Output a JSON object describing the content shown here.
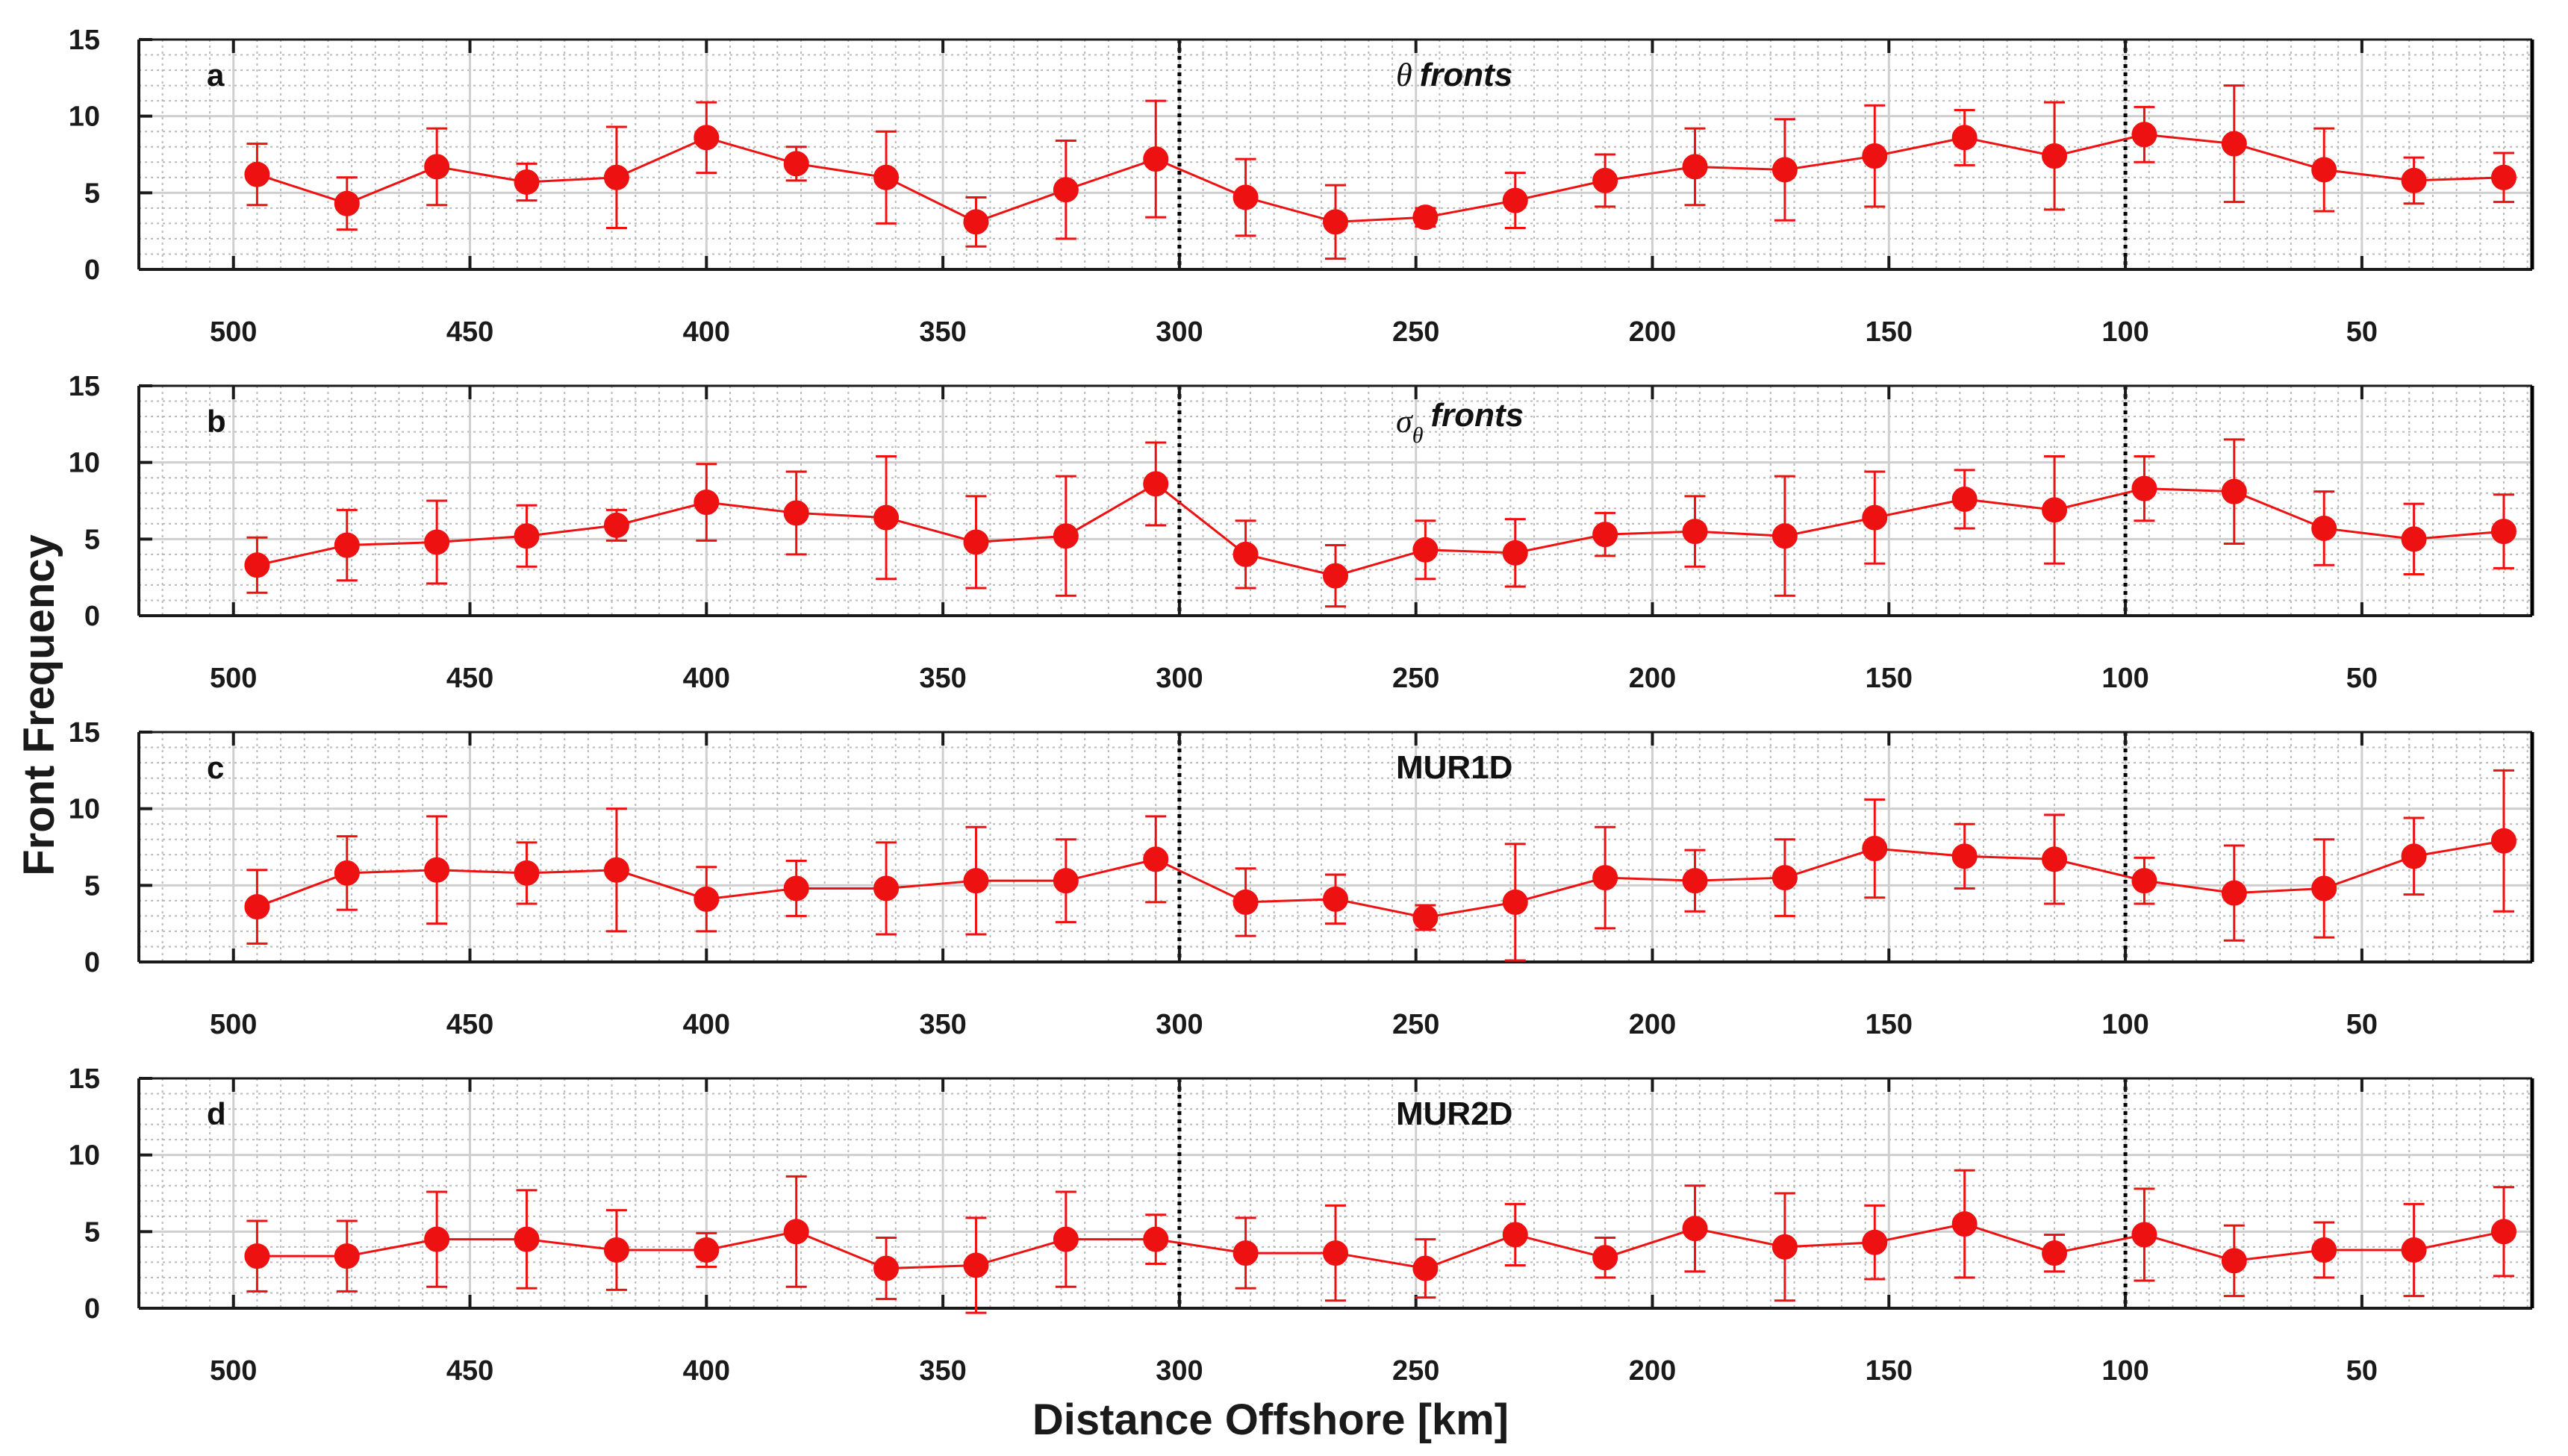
{
  "figure": {
    "ylabel": "Front Frequency",
    "xlabel": "Distance Offshore [km]"
  },
  "chart_data": [
    {
      "type": "scatter",
      "panel_label": "a",
      "title": "θ fronts",
      "title_main": "fronts",
      "title_symbol": "θ",
      "x_reversed": true,
      "xlim": [
        520,
        14
      ],
      "ylim": [
        0,
        15
      ],
      "xticks": [
        500,
        450,
        400,
        350,
        300,
        250,
        200,
        150,
        100,
        50
      ],
      "yticks": [
        0,
        5,
        10,
        15
      ],
      "vlines": [
        300,
        100
      ],
      "grid": true,
      "color": "#ee1111",
      "x": [
        495,
        476,
        457,
        438,
        419,
        400,
        381,
        362,
        343,
        324,
        305,
        286,
        267,
        248,
        229,
        210,
        191,
        172,
        153,
        134,
        115,
        96,
        77,
        58,
        39,
        20
      ],
      "y": [
        6.2,
        4.3,
        6.7,
        5.7,
        6.0,
        8.6,
        6.9,
        6.0,
        3.1,
        5.2,
        7.2,
        4.7,
        3.1,
        3.4,
        4.5,
        5.8,
        6.7,
        6.5,
        7.4,
        8.6,
        7.4,
        8.8,
        8.2,
        6.5,
        5.8,
        6.0
      ],
      "err": [
        2.0,
        1.7,
        2.5,
        1.2,
        3.3,
        2.3,
        1.1,
        3.0,
        1.6,
        3.2,
        3.8,
        2.5,
        2.4,
        0.6,
        1.8,
        1.7,
        2.5,
        3.3,
        3.3,
        1.8,
        3.5,
        1.8,
        3.8,
        2.7,
        1.5,
        1.6
      ]
    },
    {
      "type": "scatter",
      "panel_label": "b",
      "title": "σθ fronts",
      "title_main": "fronts",
      "title_symbol": "σ",
      "title_sub": "θ",
      "x_reversed": true,
      "xlim": [
        520,
        14
      ],
      "ylim": [
        0,
        15
      ],
      "xticks": [
        500,
        450,
        400,
        350,
        300,
        250,
        200,
        150,
        100,
        50
      ],
      "yticks": [
        0,
        5,
        10,
        15
      ],
      "vlines": [
        300,
        100
      ],
      "grid": true,
      "color": "#ee1111",
      "x": [
        495,
        476,
        457,
        438,
        419,
        400,
        381,
        362,
        343,
        324,
        305,
        286,
        267,
        248,
        229,
        210,
        191,
        172,
        153,
        134,
        115,
        96,
        77,
        58,
        39,
        20
      ],
      "y": [
        3.3,
        4.6,
        4.8,
        5.2,
        5.9,
        7.4,
        6.7,
        6.4,
        4.8,
        5.2,
        8.6,
        4.0,
        2.6,
        4.3,
        4.1,
        5.3,
        5.5,
        5.2,
        6.4,
        7.6,
        6.9,
        8.3,
        8.1,
        5.7,
        5.0,
        5.5
      ],
      "err": [
        1.8,
        2.3,
        2.7,
        2.0,
        1.0,
        2.5,
        2.7,
        4.0,
        3.0,
        3.9,
        2.7,
        2.2,
        2.0,
        1.9,
        2.2,
        1.4,
        2.3,
        3.9,
        3.0,
        1.9,
        3.5,
        2.1,
        3.4,
        2.4,
        2.3,
        2.4
      ]
    },
    {
      "type": "scatter",
      "panel_label": "c",
      "title": "MUR1D",
      "x_reversed": true,
      "xlim": [
        520,
        14
      ],
      "ylim": [
        0,
        15
      ],
      "xticks": [
        500,
        450,
        400,
        350,
        300,
        250,
        200,
        150,
        100,
        50
      ],
      "yticks": [
        0,
        5,
        10,
        15
      ],
      "vlines": [
        300,
        100
      ],
      "grid": true,
      "color": "#ee1111",
      "x": [
        495,
        476,
        457,
        438,
        419,
        400,
        381,
        362,
        343,
        324,
        305,
        286,
        267,
        248,
        229,
        210,
        191,
        172,
        153,
        134,
        115,
        96,
        77,
        58,
        39,
        20
      ],
      "y": [
        3.6,
        5.8,
        6.0,
        5.8,
        6.0,
        4.1,
        4.8,
        4.8,
        5.3,
        5.3,
        6.7,
        3.9,
        4.1,
        2.9,
        3.9,
        5.5,
        5.3,
        5.5,
        7.4,
        6.9,
        6.7,
        5.3,
        4.5,
        4.8,
        6.9,
        7.9
      ],
      "err": [
        2.4,
        2.4,
        3.5,
        2.0,
        4.0,
        2.1,
        1.8,
        3.0,
        3.5,
        2.7,
        2.8,
        2.2,
        1.6,
        0.8,
        3.8,
        3.3,
        2.0,
        2.5,
        3.2,
        2.1,
        2.9,
        1.5,
        3.1,
        3.2,
        2.5,
        4.6
      ]
    },
    {
      "type": "scatter",
      "panel_label": "d",
      "title": "MUR2D",
      "x_reversed": true,
      "xlim": [
        520,
        14
      ],
      "ylim": [
        0,
        15
      ],
      "xticks": [
        500,
        450,
        400,
        350,
        300,
        250,
        200,
        150,
        100,
        50
      ],
      "yticks": [
        0,
        5,
        10,
        15
      ],
      "vlines": [
        300,
        100
      ],
      "grid": true,
      "color": "#ee1111",
      "x": [
        495,
        476,
        457,
        438,
        419,
        400,
        381,
        362,
        343,
        324,
        305,
        286,
        267,
        248,
        229,
        210,
        191,
        172,
        153,
        134,
        115,
        96,
        77,
        58,
        39,
        20
      ],
      "y": [
        3.4,
        3.4,
        4.5,
        4.5,
        3.8,
        3.8,
        5.0,
        2.6,
        2.8,
        4.5,
        4.5,
        3.6,
        3.6,
        2.6,
        4.8,
        3.3,
        5.2,
        4.0,
        4.3,
        5.5,
        3.6,
        4.8,
        3.1,
        3.8,
        3.8,
        5.0
      ],
      "err": [
        2.3,
        2.3,
        3.1,
        3.2,
        2.6,
        1.1,
        3.6,
        2.0,
        3.1,
        3.1,
        1.6,
        2.3,
        3.1,
        1.9,
        2.0,
        1.3,
        2.8,
        3.5,
        2.4,
        3.5,
        1.2,
        3.0,
        2.3,
        1.8,
        3.0,
        2.9
      ]
    }
  ]
}
